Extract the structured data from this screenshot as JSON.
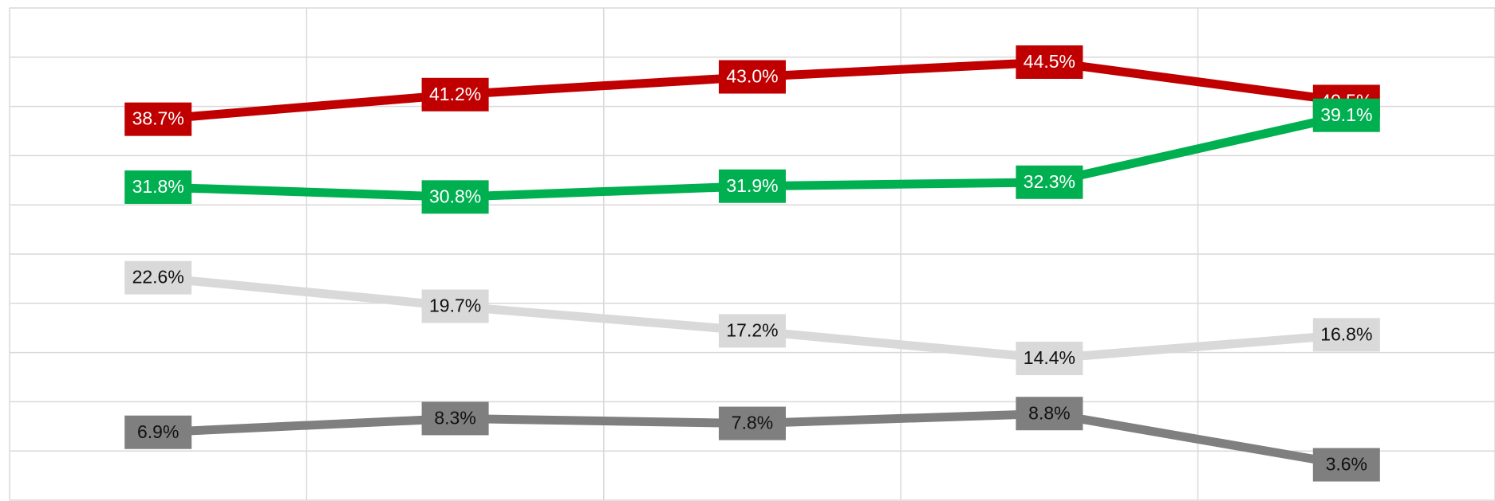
{
  "chart_data": {
    "type": "line",
    "categories": [
      null,
      null,
      null,
      null,
      null
    ],
    "ylim": [
      0,
      50
    ],
    "yticks": [
      0,
      5,
      10,
      15,
      20,
      25,
      30,
      35,
      40,
      45,
      50
    ],
    "grid": true,
    "series": [
      {
        "color": "#c00000",
        "values": [
          38.7,
          41.2,
          43.0,
          44.5,
          40.5
        ],
        "value_labels": [
          "38.7%",
          "41.2%",
          "43.0%",
          "44.5%",
          "40.5%"
        ]
      },
      {
        "color": "#00b050",
        "values": [
          31.8,
          30.8,
          31.9,
          32.3,
          39.1
        ],
        "value_labels": [
          "31.8%",
          "30.8%",
          "31.9%",
          "32.3%",
          "39.1%"
        ]
      },
      {
        "color": "#d9d9d9",
        "values": [
          22.6,
          19.7,
          17.2,
          14.4,
          16.8
        ],
        "value_labels": [
          "22.6%",
          "19.7%",
          "17.2%",
          "14.4%",
          "16.8%"
        ]
      },
      {
        "color": "#7f7f7f",
        "values": [
          6.9,
          8.3,
          7.8,
          8.8,
          3.6
        ],
        "value_labels": [
          "6.9%",
          "8.3%",
          "7.8%",
          "8.8%",
          "3.6%"
        ]
      }
    ]
  }
}
